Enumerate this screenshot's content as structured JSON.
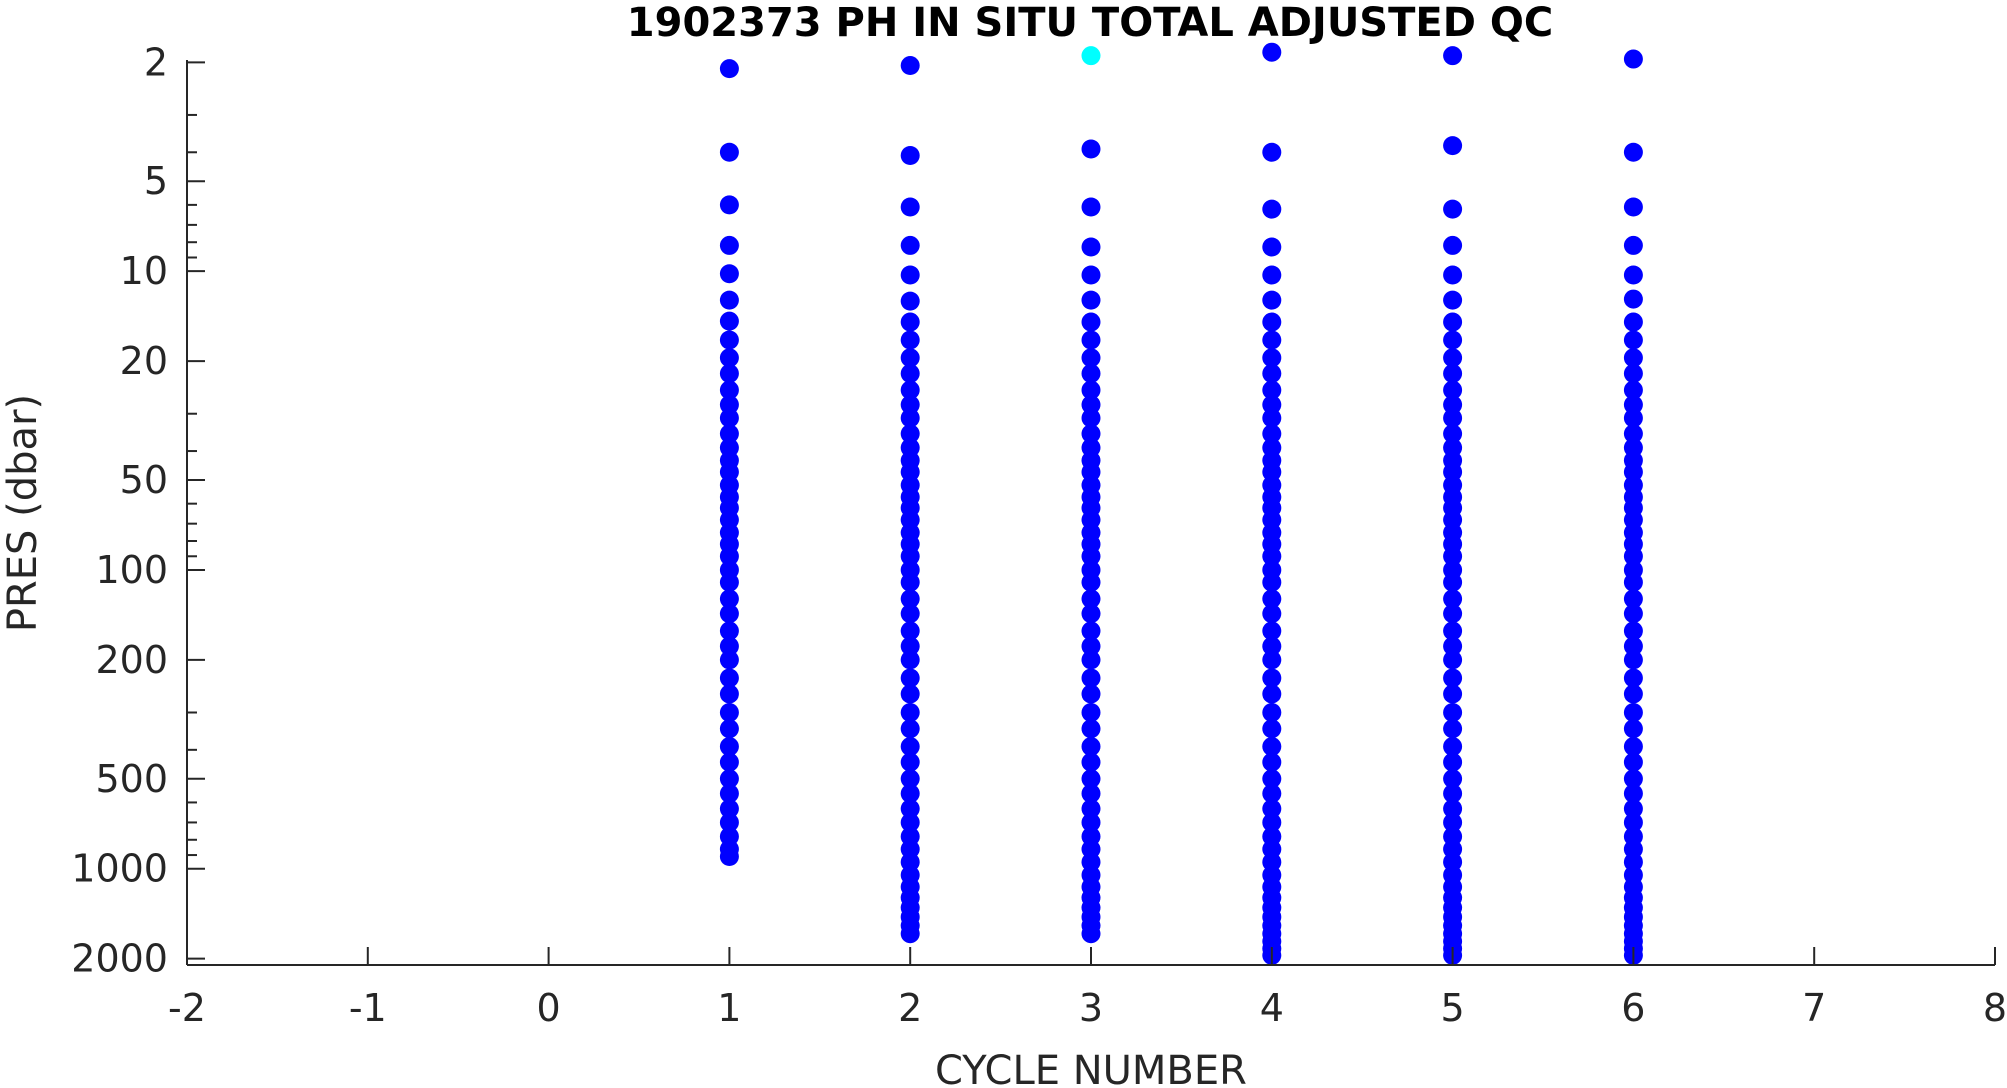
{
  "chart_data": {
    "type": "scatter",
    "title": "1902373  PH IN SITU TOTAL ADJUSTED QC",
    "xlabel": "CYCLE NUMBER",
    "ylabel": "PRES (dbar)",
    "x_ticks": [
      "-2",
      "-1",
      "0",
      "1",
      "2",
      "3",
      "4",
      "5",
      "6",
      "7",
      "8"
    ],
    "y_ticks": [
      "2",
      "5",
      "10",
      "20",
      "50",
      "100",
      "200",
      "500",
      "1000",
      "2000"
    ],
    "xlim": [
      -2,
      8
    ],
    "ylim": [
      1.75,
      2100
    ],
    "y_scale": "log",
    "y_reversed": true,
    "grid": false,
    "colors": {
      "qc_good": "#0000ff",
      "qc_other": "#00ffff",
      "axis": "#262626"
    },
    "series": [
      {
        "x": 1,
        "values": [
          2.1,
          4.0,
          6.0,
          8.2,
          10.2,
          12.5,
          14.7,
          17,
          19.5,
          22,
          25,
          28,
          31,
          35,
          39,
          43,
          47,
          52,
          57,
          62,
          68,
          75,
          82,
          90,
          100,
          110,
          125,
          140,
          160,
          180,
          200,
          230,
          260,
          300,
          340,
          390,
          440,
          500,
          560,
          630,
          700,
          780,
          860,
          910
        ],
        "highlight": []
      },
      {
        "x": 2,
        "values": [
          2.05,
          4.1,
          6.1,
          8.2,
          10.3,
          12.6,
          14.8,
          17,
          19.5,
          22,
          25,
          28,
          31,
          35,
          39,
          43,
          47,
          52,
          57,
          62,
          68,
          75,
          82,
          90,
          100,
          110,
          125,
          140,
          160,
          180,
          200,
          230,
          260,
          300,
          340,
          390,
          440,
          500,
          560,
          630,
          700,
          780,
          860,
          950,
          1050,
          1150,
          1250,
          1350,
          1450,
          1550,
          1650
        ],
        "highlight": []
      },
      {
        "x": 3,
        "values": [
          1.9,
          3.9,
          6.1,
          8.3,
          10.3,
          12.5,
          14.8,
          17,
          19.5,
          22,
          25,
          28,
          31,
          35,
          39,
          43,
          47,
          52,
          57,
          62,
          68,
          75,
          82,
          90,
          100,
          110,
          125,
          140,
          160,
          180,
          200,
          230,
          260,
          300,
          340,
          390,
          440,
          500,
          560,
          630,
          700,
          780,
          860,
          950,
          1050,
          1150,
          1250,
          1350,
          1450,
          1550,
          1650
        ],
        "highlight": [
          1.9
        ]
      },
      {
        "x": 4,
        "values": [
          1.85,
          4.0,
          6.2,
          8.3,
          10.3,
          12.5,
          14.8,
          17,
          19.5,
          22,
          25,
          28,
          31,
          35,
          39,
          43,
          47,
          52,
          57,
          62,
          68,
          75,
          82,
          90,
          100,
          110,
          125,
          140,
          160,
          180,
          200,
          230,
          260,
          300,
          340,
          390,
          440,
          500,
          560,
          630,
          700,
          780,
          860,
          950,
          1050,
          1150,
          1250,
          1350,
          1450,
          1550,
          1650,
          1750,
          1850,
          1950
        ],
        "highlight": []
      },
      {
        "x": 5,
        "values": [
          1.9,
          3.8,
          6.2,
          8.2,
          10.3,
          12.5,
          14.8,
          17,
          19.5,
          22,
          25,
          28,
          31,
          35,
          39,
          43,
          47,
          52,
          57,
          62,
          68,
          75,
          82,
          90,
          100,
          110,
          125,
          140,
          160,
          180,
          200,
          230,
          260,
          300,
          340,
          390,
          440,
          500,
          560,
          630,
          700,
          780,
          860,
          950,
          1050,
          1150,
          1250,
          1350,
          1450,
          1550,
          1650,
          1750,
          1850,
          1950
        ],
        "highlight": []
      },
      {
        "x": 6,
        "values": [
          1.95,
          4.0,
          6.1,
          8.2,
          10.3,
          12.4,
          14.8,
          17,
          19.5,
          22,
          25,
          28,
          31,
          35,
          39,
          43,
          47,
          52,
          57,
          62,
          68,
          75,
          82,
          90,
          100,
          110,
          125,
          140,
          160,
          180,
          200,
          230,
          260,
          300,
          340,
          390,
          440,
          500,
          560,
          630,
          700,
          780,
          860,
          950,
          1050,
          1150,
          1250,
          1350,
          1450,
          1550,
          1650,
          1750,
          1850,
          1950
        ],
        "highlight": []
      }
    ]
  }
}
